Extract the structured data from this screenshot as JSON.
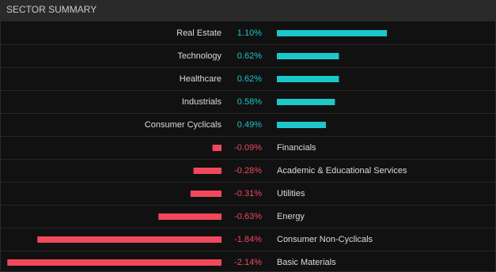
{
  "chart_data": {
    "type": "bar",
    "title": "SECTOR SUMMARY",
    "categories": [
      "Real Estate",
      "Technology",
      "Healthcare",
      "Industrials",
      "Consumer Cyclicals",
      "Financials",
      "Academic & Educational Services",
      "Utilities",
      "Energy",
      "Consumer Non-Cyclicals",
      "Basic Materials"
    ],
    "values": [
      1.1,
      0.62,
      0.62,
      0.58,
      0.49,
      -0.09,
      -0.28,
      -0.31,
      -0.63,
      -1.84,
      -2.14
    ],
    "value_labels": [
      "1.10%",
      "0.62%",
      "0.62%",
      "0.58%",
      "0.49%",
      "-0.09%",
      "-0.28%",
      "-0.31%",
      "-0.63%",
      "-1.84%",
      "-2.14%"
    ],
    "positive_color": "#1cc7c9",
    "negative_color": "#f2485c"
  }
}
